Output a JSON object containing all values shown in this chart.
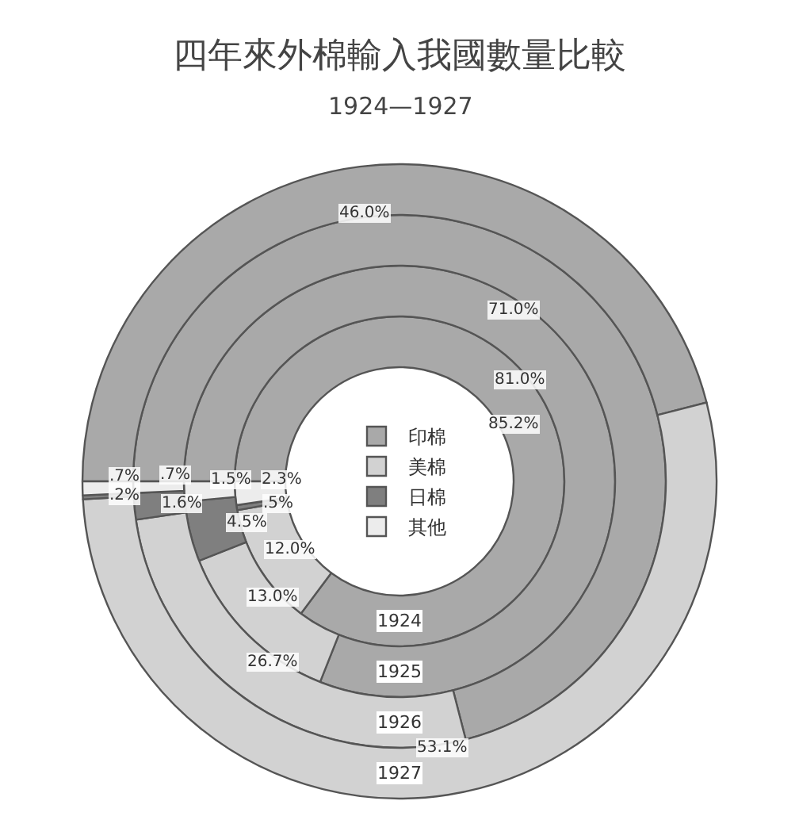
{
  "chart_data": {
    "type": "donut",
    "title": "四年來外棉輸入我國數量比較",
    "subtitle": "1924—1927",
    "categories": [
      "印棉",
      "美棉",
      "日棉",
      "其他"
    ],
    "colors": [
      "#a9a9a9",
      "#d2d2d2",
      "#7f7f7f",
      "#ececec"
    ],
    "legend": "center",
    "series": [
      {
        "name": "1924",
        "values": [
          85.2,
          12.0,
          0.5,
          2.3
        ],
        "value_labels": [
          "85.2%",
          "12.0%",
          ".5%",
          "2.3%"
        ]
      },
      {
        "name": "1925",
        "values": [
          81.0,
          13.0,
          4.5,
          1.5
        ],
        "value_labels": [
          "81.0%",
          "13.0%",
          "4.5%",
          "1.5%"
        ]
      },
      {
        "name": "1926",
        "values": [
          71.0,
          26.7,
          1.6,
          0.7
        ],
        "value_labels": [
          "71.0%",
          "26.7%",
          "1.6%",
          ".7%"
        ]
      },
      {
        "name": "1927",
        "values": [
          46.0,
          53.1,
          0.2,
          0.7
        ],
        "value_labels": [
          "46.0%",
          "53.1%",
          ".2%",
          ".7%"
        ]
      }
    ]
  }
}
